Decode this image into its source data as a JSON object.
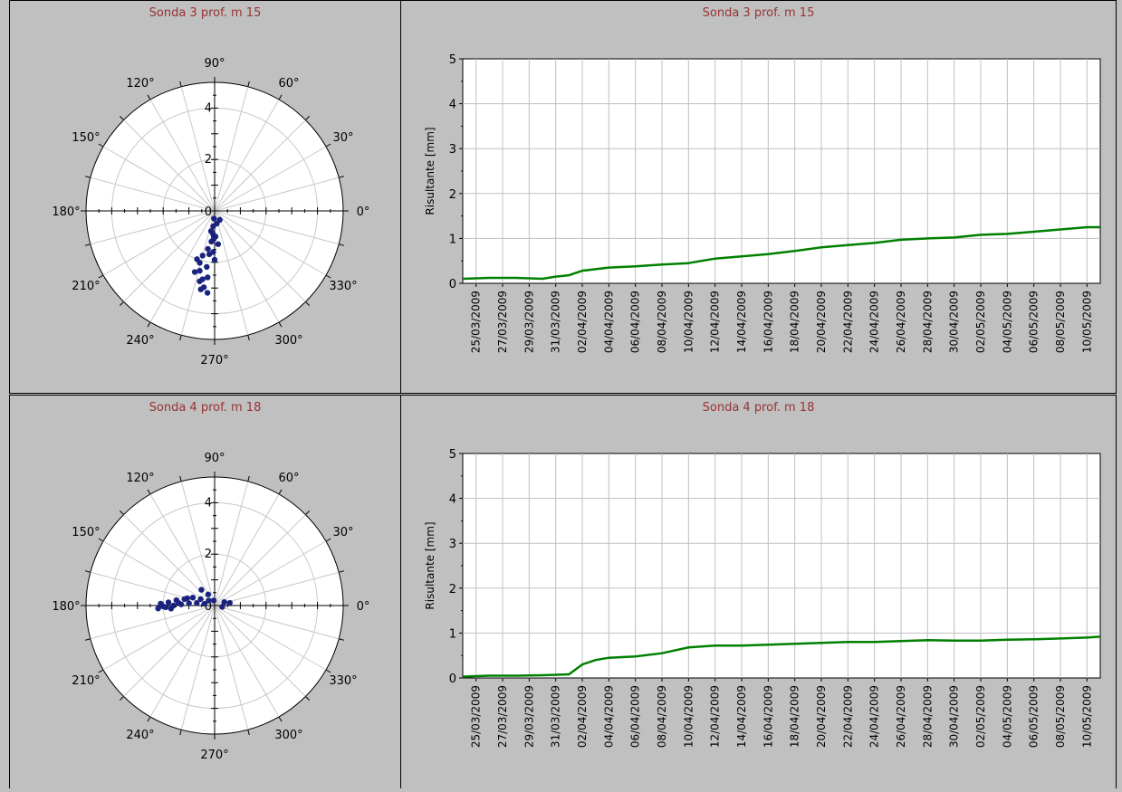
{
  "charts": [
    {
      "title": "Sonda 3 prof. m 15",
      "polar": {
        "type": "scatter",
        "angle_labels": [
          "0°",
          "30°",
          "60°",
          "90°",
          "120°",
          "150°",
          "180°",
          "210°",
          "240°",
          "270°",
          "300°",
          "330°"
        ],
        "radial_ticks": [
          "2",
          "4"
        ],
        "r_max": 5,
        "points": [
          [
            0.3,
            -95
          ],
          [
            0.6,
            -95
          ],
          [
            0.9,
            -94
          ],
          [
            1.2,
            -96
          ],
          [
            1.5,
            -100
          ],
          [
            1.8,
            -105
          ],
          [
            2.1,
            -106
          ],
          [
            2.4,
            -104
          ],
          [
            2.7,
            -100
          ],
          [
            3.0,
            -98
          ],
          [
            3.2,
            -95
          ],
          [
            1.0,
            -88
          ],
          [
            1.6,
            -92
          ],
          [
            2.0,
            -110
          ],
          [
            2.5,
            -108
          ],
          [
            2.8,
            -102
          ],
          [
            3.1,
            -100
          ],
          [
            0.5,
            -80
          ],
          [
            1.3,
            -84
          ],
          [
            2.2,
            -98
          ],
          [
            2.6,
            -96
          ],
          [
            1.9,
            -90
          ],
          [
            0.8,
            -100
          ],
          [
            0.4,
            -60
          ],
          [
            1.1,
            -92
          ],
          [
            1.7,
            -97
          ]
        ]
      },
      "line": {
        "type": "line",
        "ylabel": "Risultante [mm]",
        "ylim": [
          0,
          5
        ],
        "yticks": [
          "0",
          "1",
          "2",
          "3",
          "4",
          "5"
        ],
        "x_tick_labels": [
          "25/03/2009",
          "27/03/2009",
          "29/03/2009",
          "31/03/2009",
          "02/04/2009",
          "04/04/2009",
          "06/04/2009",
          "08/04/2009",
          "10/04/2009",
          "12/04/2009",
          "14/04/2009",
          "16/04/2009",
          "18/04/2009",
          "20/04/2009",
          "22/04/2009",
          "24/04/2009",
          "26/04/2009",
          "28/04/2009",
          "30/04/2009",
          "02/05/2009",
          "04/05/2009",
          "06/05/2009",
          "08/05/2009",
          "10/05/2009"
        ],
        "series_color": "#008000",
        "x_range": [
          "24/03/2009",
          "11/05/2009"
        ],
        "x": [
          "24/03/2009",
          "26/03/2009",
          "28/03/2009",
          "30/03/2009",
          "31/03/2009",
          "01/04/2009",
          "02/04/2009",
          "04/04/2009",
          "06/04/2009",
          "08/04/2009",
          "10/04/2009",
          "12/04/2009",
          "14/04/2009",
          "16/04/2009",
          "18/04/2009",
          "20/04/2009",
          "22/04/2009",
          "24/04/2009",
          "26/04/2009",
          "28/04/2009",
          "30/04/2009",
          "02/05/2009",
          "04/05/2009",
          "06/05/2009",
          "08/05/2009",
          "10/05/2009",
          "11/05/2009"
        ],
        "values": [
          0.1,
          0.12,
          0.12,
          0.1,
          0.15,
          0.18,
          0.28,
          0.35,
          0.38,
          0.42,
          0.45,
          0.55,
          0.6,
          0.65,
          0.72,
          0.8,
          0.85,
          0.9,
          0.97,
          1.0,
          1.02,
          1.08,
          1.1,
          1.15,
          1.2,
          1.25,
          1.25
        ]
      }
    },
    {
      "title": "Sonda 4 prof. m 18",
      "polar": {
        "type": "scatter",
        "angle_labels": [
          "0°",
          "30°",
          "60°",
          "90°",
          "120°",
          "150°",
          "180°",
          "210°",
          "240°",
          "270°",
          "300°",
          "330°"
        ],
        "radial_ticks": [
          "2",
          "4"
        ],
        "r_max": 5,
        "points": [
          [
            0.4,
            170
          ],
          [
            0.7,
            172
          ],
          [
            1.0,
            175
          ],
          [
            1.3,
            178
          ],
          [
            1.6,
            180
          ],
          [
            1.9,
            182
          ],
          [
            2.1,
            178
          ],
          [
            1.5,
            172
          ],
          [
            1.2,
            168
          ],
          [
            0.9,
            160
          ],
          [
            0.6,
            155
          ],
          [
            0.3,
            140
          ],
          [
            0.5,
            120
          ],
          [
            0.8,
            130
          ],
          [
            1.1,
            165
          ],
          [
            1.4,
            176
          ],
          [
            1.7,
            184
          ],
          [
            2.0,
            181
          ],
          [
            0.2,
            100
          ],
          [
            0.4,
            20
          ],
          [
            0.6,
            10
          ],
          [
            0.3,
            -10
          ],
          [
            1.8,
            176
          ],
          [
            2.2,
            183
          ]
        ]
      },
      "line": {
        "type": "line",
        "ylabel": "Risultante [mm]",
        "ylim": [
          0,
          5
        ],
        "yticks": [
          "0",
          "1",
          "2",
          "3",
          "4",
          "5"
        ],
        "x_tick_labels": [
          "25/03/2009",
          "27/03/2009",
          "29/03/2009",
          "31/03/2009",
          "02/04/2009",
          "04/04/2009",
          "06/04/2009",
          "08/04/2009",
          "10/04/2009",
          "12/04/2009",
          "14/04/2009",
          "16/04/2009",
          "18/04/2009",
          "20/04/2009",
          "22/04/2009",
          "24/04/2009",
          "26/04/2009",
          "28/04/2009",
          "30/04/2009",
          "02/05/2009",
          "04/05/2009",
          "06/05/2009",
          "08/05/2009",
          "10/05/2009"
        ],
        "series_color": "#008000",
        "x_range": [
          "24/03/2009",
          "11/05/2009"
        ],
        "x": [
          "24/03/2009",
          "26/03/2009",
          "28/03/2009",
          "30/03/2009",
          "01/04/2009",
          "02/04/2009",
          "03/04/2009",
          "04/04/2009",
          "06/04/2009",
          "08/04/2009",
          "10/04/2009",
          "12/04/2009",
          "14/04/2009",
          "16/04/2009",
          "18/04/2009",
          "20/04/2009",
          "22/04/2009",
          "24/04/2009",
          "26/04/2009",
          "28/04/2009",
          "30/04/2009",
          "02/05/2009",
          "04/05/2009",
          "06/05/2009",
          "08/05/2009",
          "10/05/2009",
          "11/05/2009"
        ],
        "values": [
          0.03,
          0.05,
          0.05,
          0.06,
          0.08,
          0.3,
          0.4,
          0.45,
          0.48,
          0.55,
          0.68,
          0.72,
          0.72,
          0.74,
          0.76,
          0.78,
          0.8,
          0.8,
          0.82,
          0.84,
          0.83,
          0.83,
          0.85,
          0.86,
          0.88,
          0.9,
          0.92
        ]
      }
    }
  ]
}
